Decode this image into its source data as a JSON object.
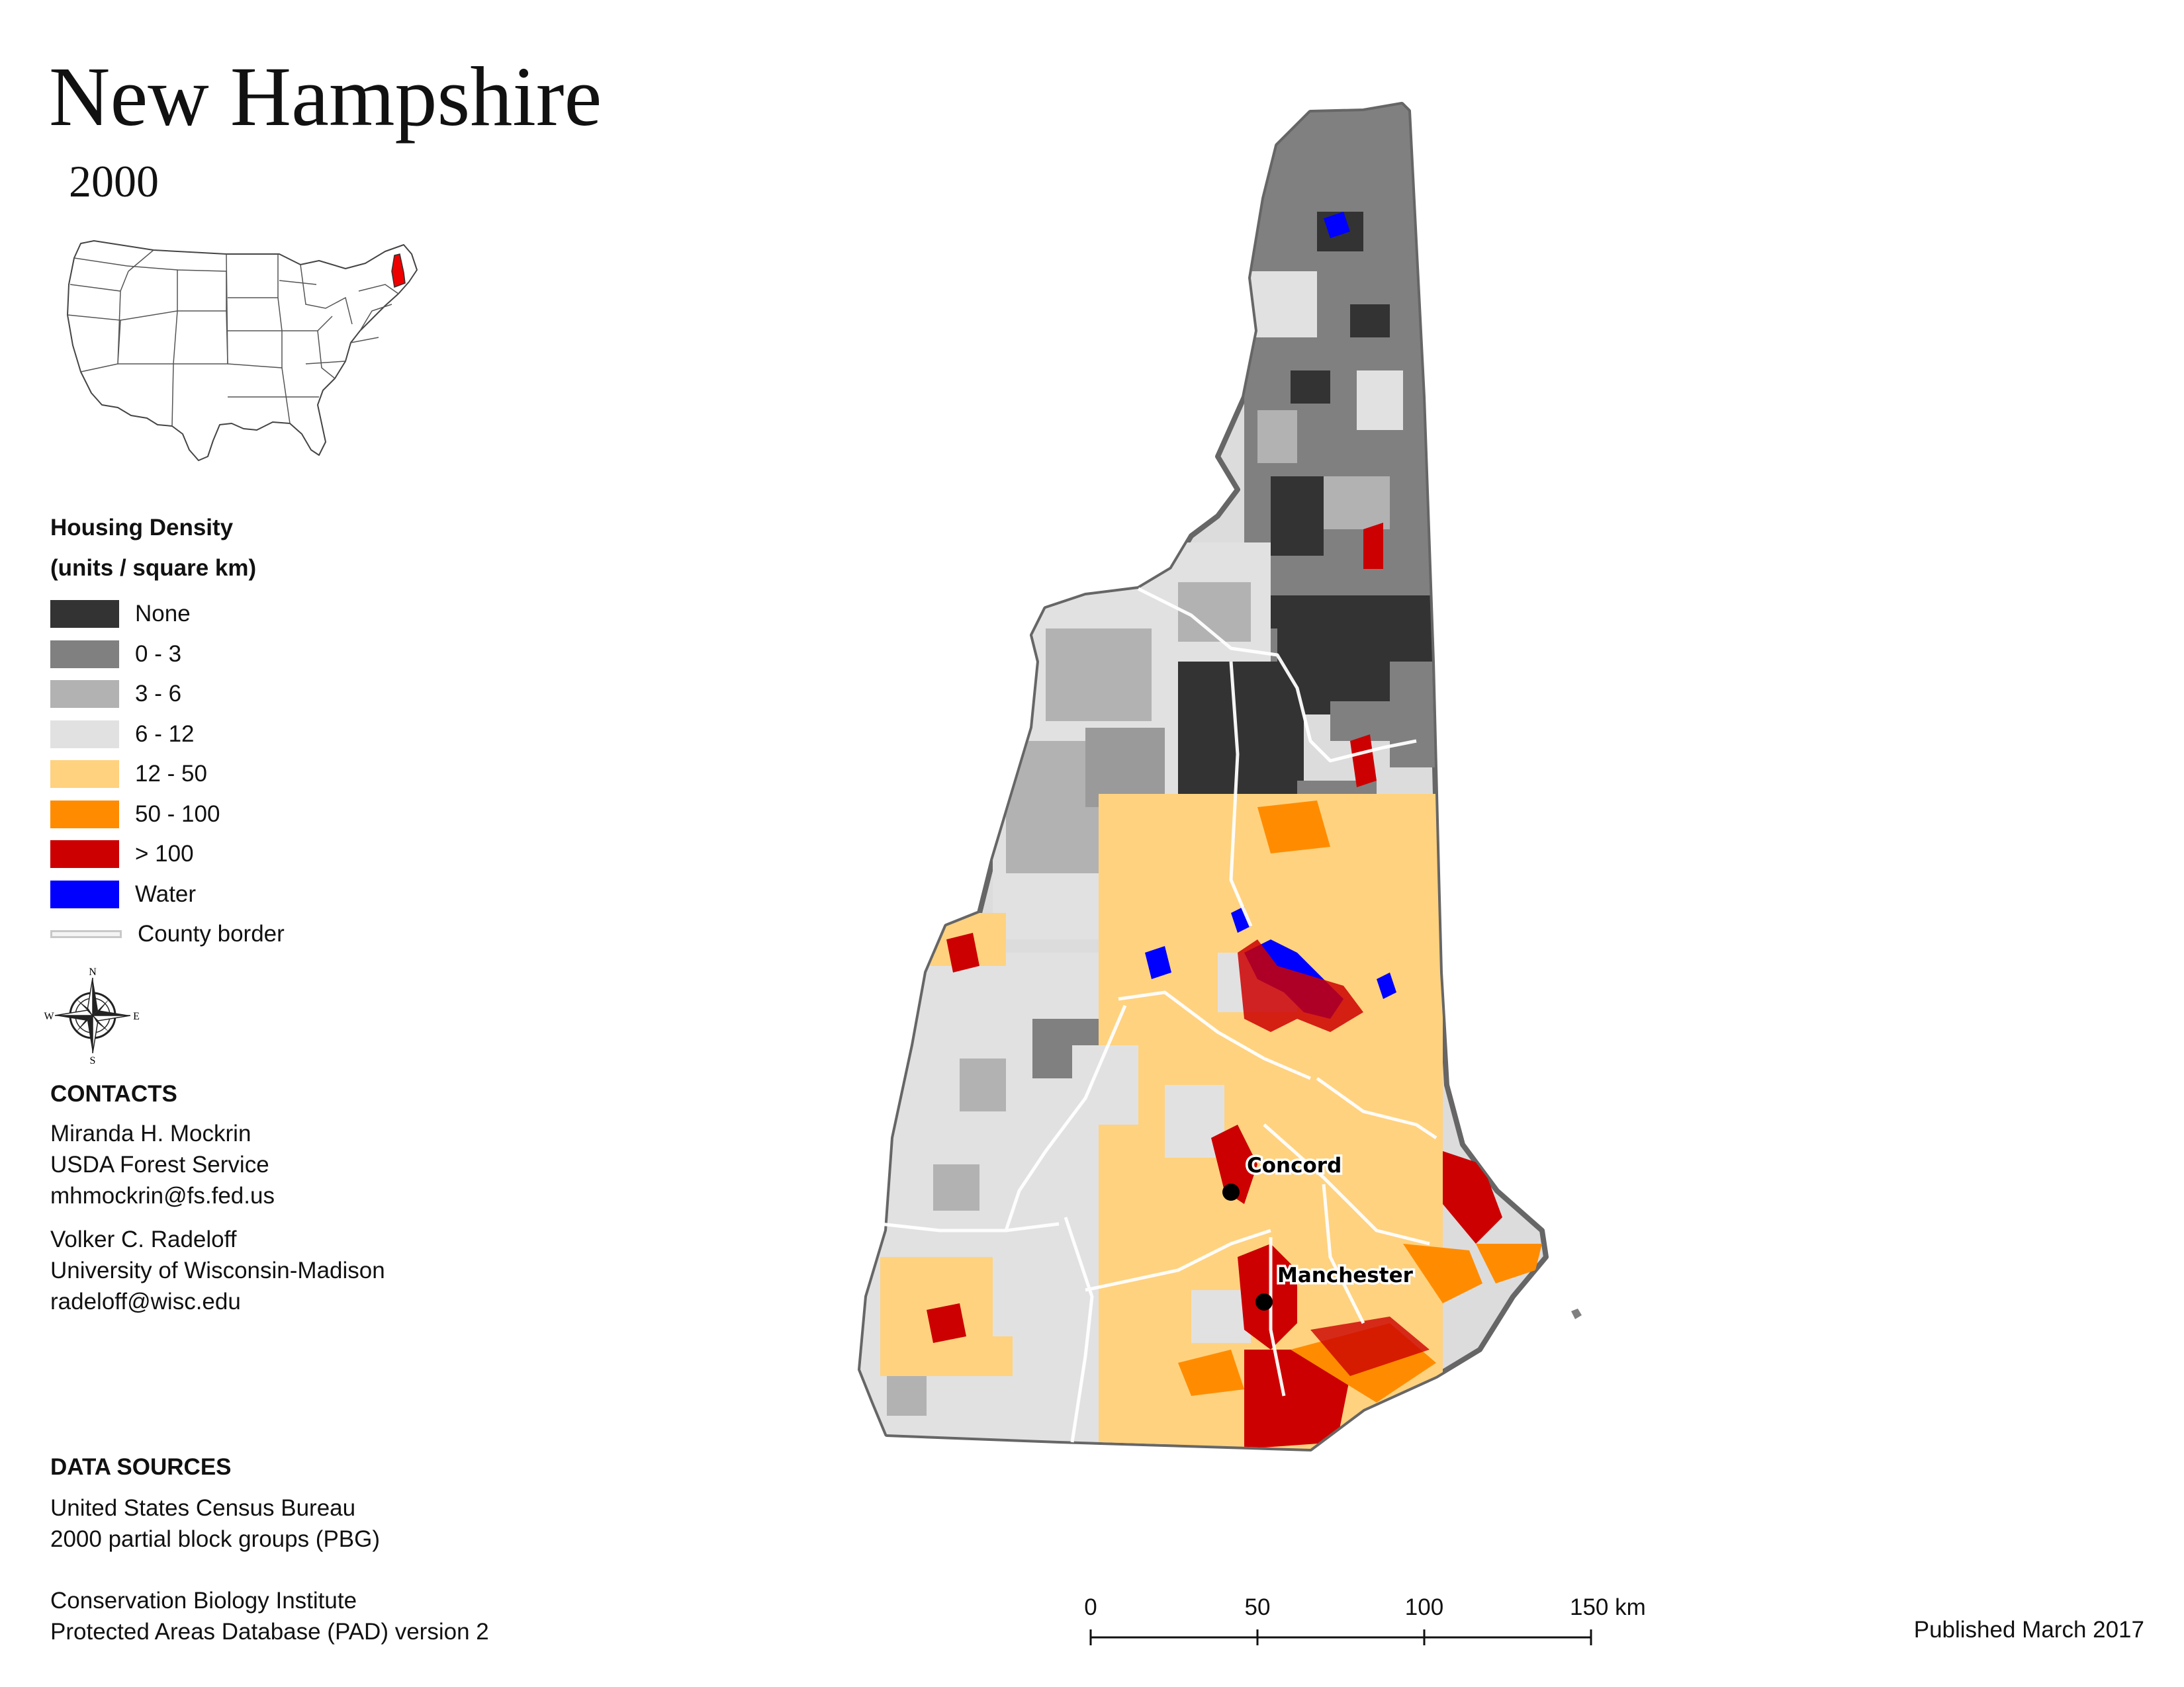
{
  "title": "New Hampshire",
  "year": "2000",
  "legend": {
    "title_line1": "Housing Density",
    "title_line2": "(units / square km)",
    "items": [
      {
        "label": "None",
        "color": "#333333"
      },
      {
        "label": "0 - 3",
        "color": "#808080"
      },
      {
        "label": "3 - 6",
        "color": "#b2b2b2"
      },
      {
        "label": "6 - 12",
        "color": "#e1e1e1"
      },
      {
        "label": "12 - 50",
        "color": "#ffd27f"
      },
      {
        "label": "50 - 100",
        "color": "#ff8c00"
      },
      {
        "label": "> 100",
        "color": "#cc0000"
      },
      {
        "label": "Water",
        "color": "#0000ff"
      }
    ],
    "county_border_label": "County border",
    "county_border_color": "#c8c8c8"
  },
  "compass": {
    "n": "N",
    "s": "S",
    "e": "E",
    "w": "W"
  },
  "contacts": {
    "heading": "CONTACTS",
    "people": [
      {
        "name": "Miranda H. Mockrin",
        "org": "USDA Forest Service",
        "email": "mhmockrin@fs.fed.us"
      },
      {
        "name": "Volker C. Radeloff",
        "org": "University of Wisconsin-Madison",
        "email": "radeloff@wisc.edu"
      }
    ]
  },
  "data_sources": {
    "heading": "DATA SOURCES",
    "sources": [
      {
        "line1": "United States Census Bureau",
        "line2": "2000 partial block groups (PBG)"
      },
      {
        "line1": "Conservation Biology Institute",
        "line2": "Protected Areas Database (PAD) version 2"
      }
    ]
  },
  "cities": [
    {
      "name": "Concord"
    },
    {
      "name": "Manchester"
    }
  ],
  "scale_bar": {
    "ticks": [
      "0",
      "50",
      "100",
      "150 km"
    ]
  },
  "published": "Published March 2017"
}
